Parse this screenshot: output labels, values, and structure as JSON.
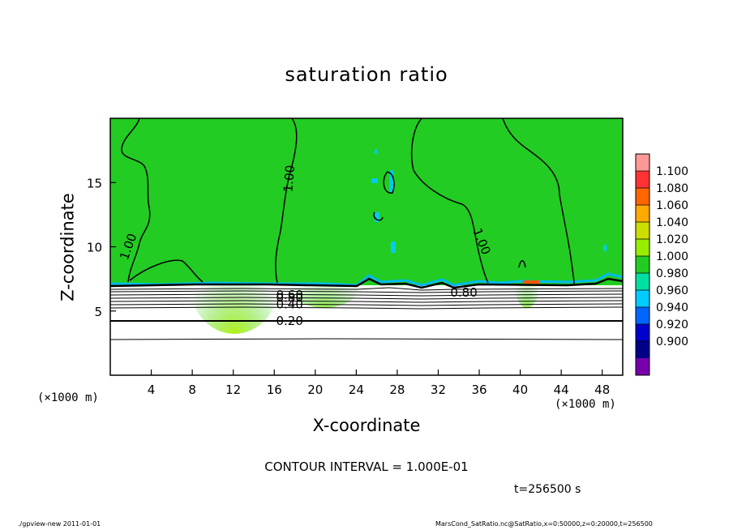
{
  "chart_data": {
    "type": "heatmap",
    "title": "saturation ratio",
    "xlabel": "X-coordinate",
    "ylabel": "Z-coordinate",
    "x_unit_label": "(×1000 m)",
    "xlim": [
      0,
      50
    ],
    "ylim": [
      0,
      20
    ],
    "x_ticks": [
      4,
      8,
      12,
      16,
      20,
      24,
      28,
      32,
      36,
      40,
      44,
      48
    ],
    "y_ticks": [
      5,
      10,
      15
    ],
    "colorbar": {
      "levels": [
        "1.100",
        "1.080",
        "1.060",
        "1.040",
        "1.020",
        "1.000",
        "0.980",
        "0.960",
        "0.940",
        "0.920",
        "0.900"
      ],
      "colors": [
        "#ff9999",
        "#ff3333",
        "#ff6600",
        "#ffaa00",
        "#ccdd00",
        "#99ee00",
        "#22cc22",
        "#00e0a0",
        "#00ccff",
        "#0066ff",
        "#0000cc",
        "#000088",
        "#7700aa"
      ]
    },
    "contour_labels": [
      {
        "text": "1.00",
        "x": 1.8,
        "z": 10.0,
        "angle": -70
      },
      {
        "text": "1.00",
        "x": 17.5,
        "z": 15.3,
        "angle": -85
      },
      {
        "text": "1.00",
        "x": 36.2,
        "z": 10.4,
        "angle": 68
      },
      {
        "text": "0.80",
        "x": 17.5,
        "z": 6.0,
        "angle": 0
      },
      {
        "text": "0.60",
        "x": 17.5,
        "z": 6.2,
        "angle": 0
      },
      {
        "text": "0.40",
        "x": 17.5,
        "z": 5.5,
        "angle": 0
      },
      {
        "text": "0.20",
        "x": 17.5,
        "z": 4.2,
        "angle": 0
      },
      {
        "text": "0.80",
        "x": 34.5,
        "z": 6.4,
        "angle": 0
      }
    ],
    "contour_interval_text": "CONTOUR INTERVAL = 1.000E-01",
    "time_text": "t=256500 s"
  },
  "footer": {
    "left": "./gpview-new 2011-01-01",
    "right": "MarsCond_SatRatio.nc@SatRatio,x=0:50000,z=0:20000,t=256500"
  }
}
